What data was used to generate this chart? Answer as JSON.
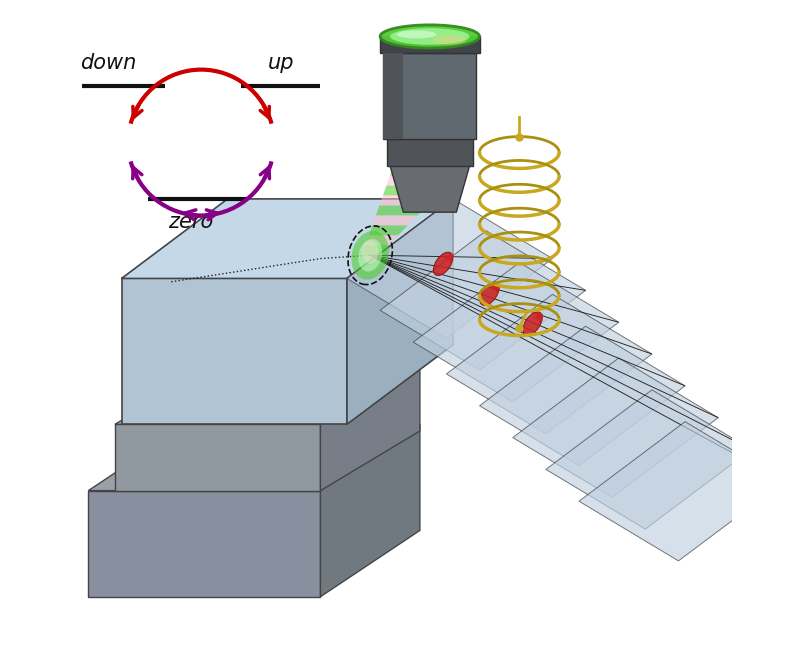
{
  "bg_color": "#ffffff",
  "fig_width": 8.0,
  "fig_height": 6.63,
  "dpi": 100,
  "label_down": "down",
  "label_up": "up",
  "label_zero": "zero",
  "label_fontsize": 15,
  "red_color": "#cc0000",
  "purple_color": "#880088",
  "gold_color": "#c8a820",
  "gray_dark": "#484c50",
  "gray_mid": "#686c70",
  "gray_light": "#888c90",
  "blue_face": "#b8ccd8",
  "blue_top": "#ccdce8",
  "blue_right": "#a0b8c8",
  "base_face": "#9098a0",
  "base_top": "#a8b0b8",
  "base_right": "#787e88",
  "green_laser": "#44cc22",
  "pink_laser": "#ffaacc"
}
